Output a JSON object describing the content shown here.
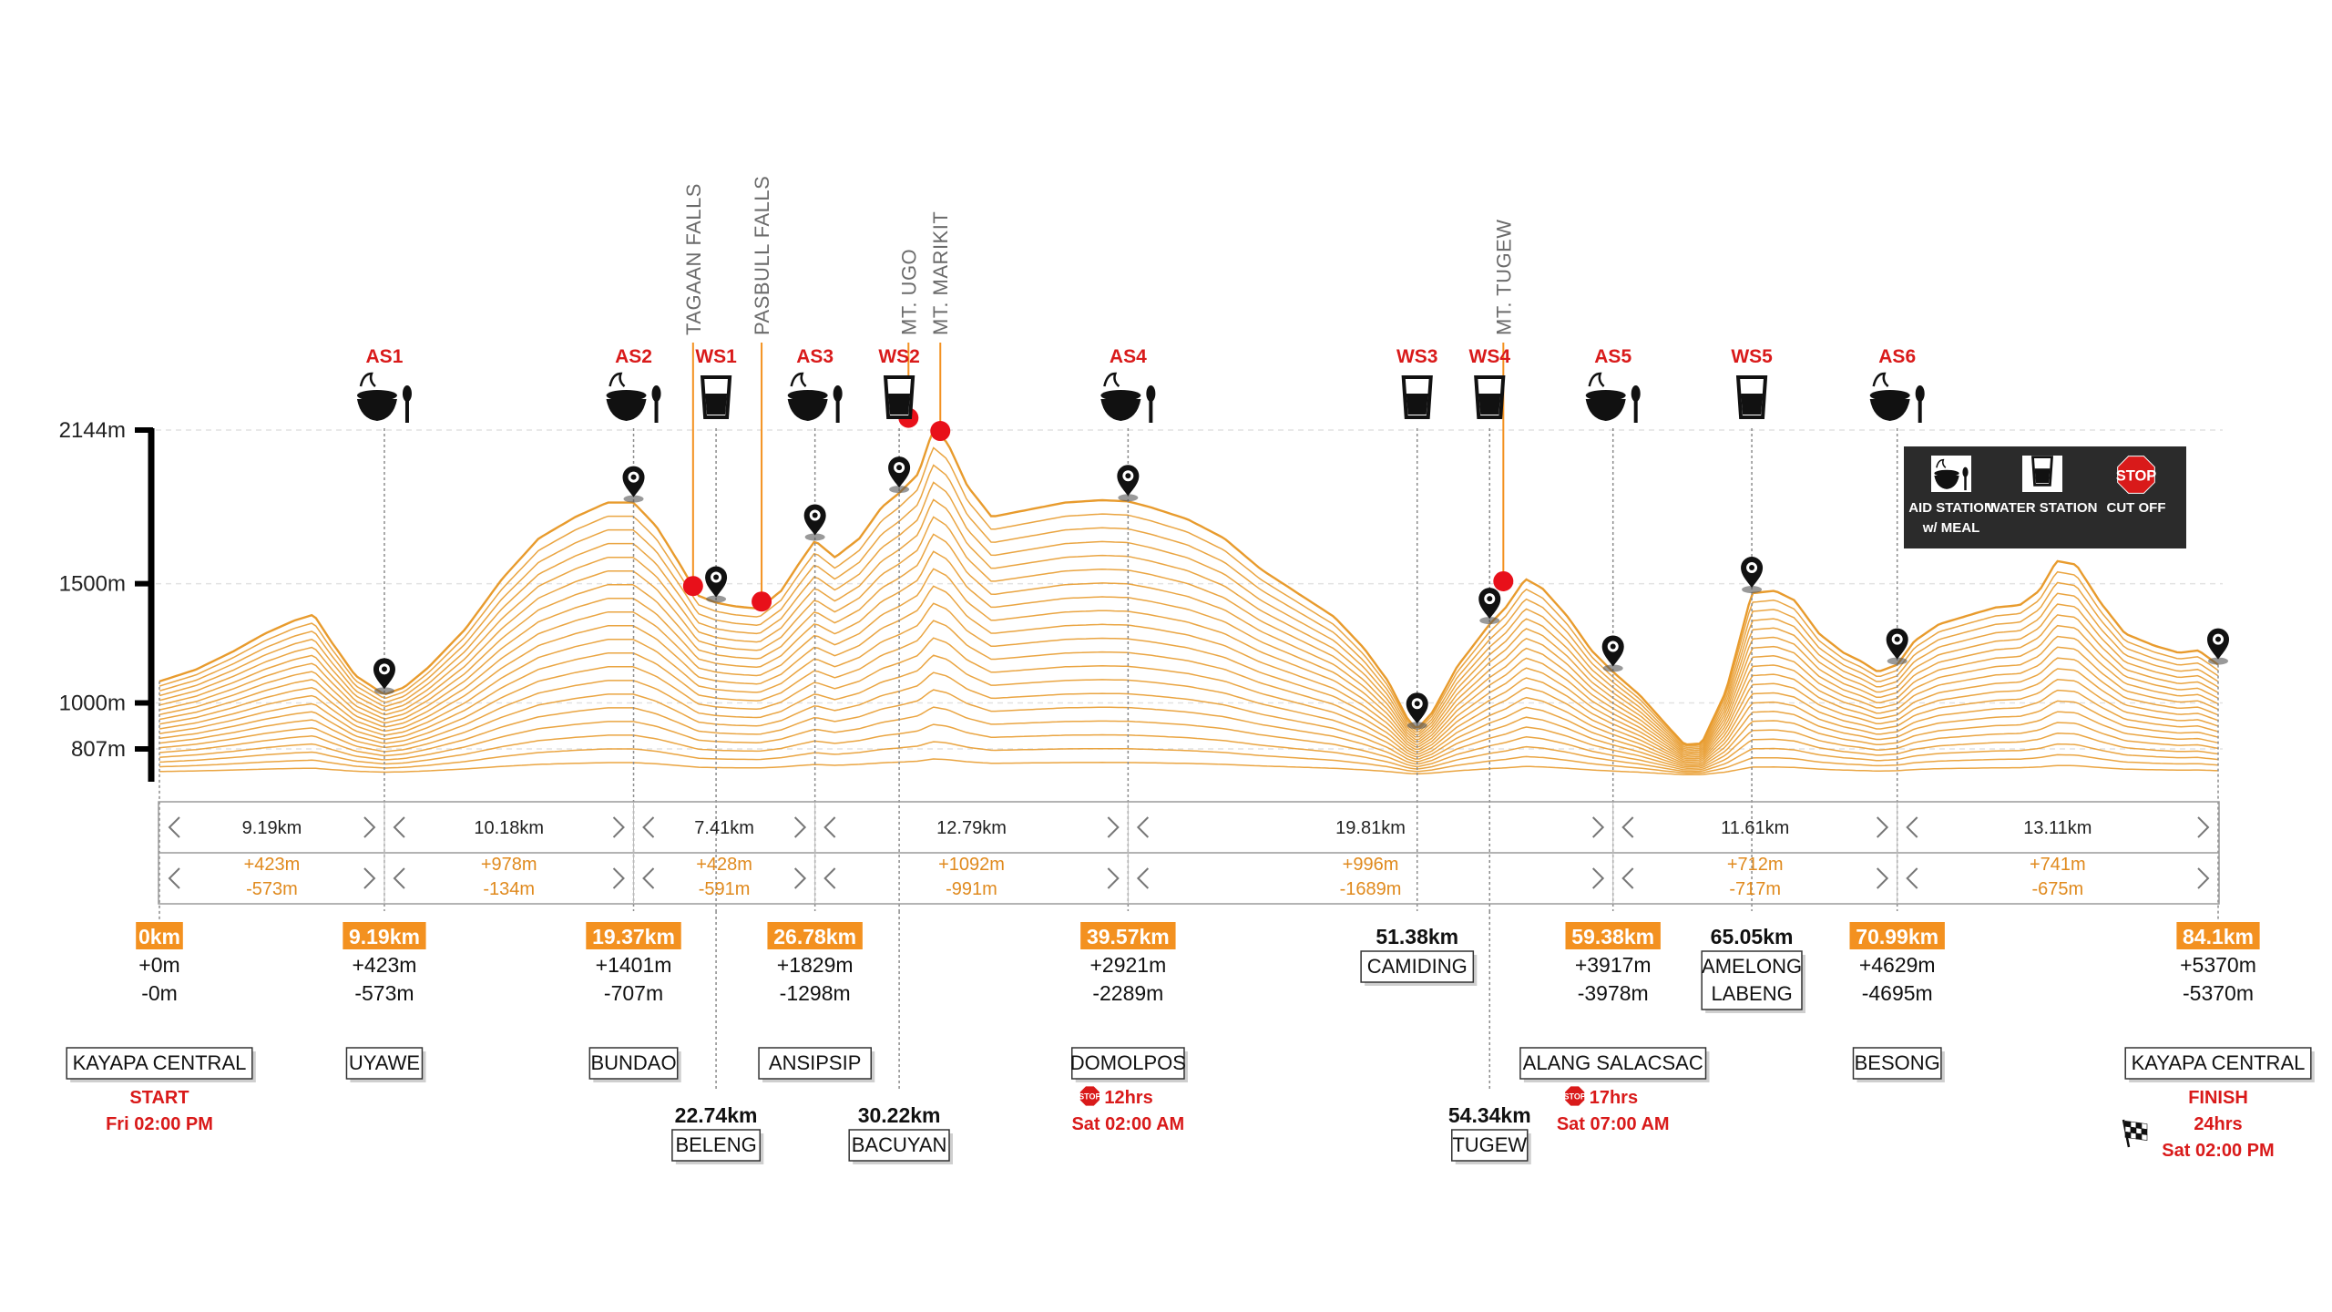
{
  "chart_data": {
    "type": "area",
    "title": "",
    "ylabel": "",
    "xlabel": "",
    "y_ticks": [
      {
        "label": "2144m",
        "value": 2144
      },
      {
        "label": "1500m",
        "value": 1500
      },
      {
        "label": "1000m",
        "value": 1000
      },
      {
        "label": "807m",
        "value": 807
      }
    ],
    "x_range_km": [
      0,
      84.1
    ],
    "profile": {
      "x": [
        0,
        1.5,
        3,
        4.3,
        5.5,
        6.3,
        7,
        8,
        9.19,
        10,
        11,
        12.5,
        14,
        15.5,
        17,
        18.3,
        19.37,
        20.3,
        21.3,
        22,
        22.74,
        23.5,
        24.5,
        25.4,
        26.1,
        26.78,
        27.6,
        28.6,
        29.5,
        30.22,
        31,
        31.6,
        32.2,
        33,
        34,
        35.5,
        37,
        38.5,
        39.57,
        40.5,
        42,
        43.5,
        45,
        46.5,
        48,
        49.2,
        50.2,
        51,
        51.38,
        52,
        53,
        54.34,
        55,
        55.8,
        56.5,
        57.5,
        58.5,
        59.38,
        60.5,
        61.5,
        62.3,
        63,
        64,
        65.05,
        66,
        66.8,
        67.8,
        68.8,
        69.5,
        70.2,
        70.99,
        71.7,
        72.7,
        74,
        75,
        76,
        76.8,
        77.5,
        78.3,
        79.3,
        80.3,
        81.5,
        82.5,
        83.3,
        84.1
      ],
      "y": [
        1090,
        1140,
        1215,
        1290,
        1345,
        1370,
        1260,
        1115,
        1035,
        1065,
        1150,
        1310,
        1520,
        1690,
        1780,
        1840,
        1840,
        1740,
        1575,
        1450,
        1420,
        1405,
        1395,
        1470,
        1580,
        1680,
        1610,
        1690,
        1820,
        1880,
        1960,
        2144,
        2090,
        1910,
        1780,
        1810,
        1840,
        1850,
        1845,
        1820,
        1770,
        1690,
        1560,
        1460,
        1360,
        1230,
        1090,
        930,
        890,
        960,
        1150,
        1330,
        1400,
        1520,
        1480,
        1365,
        1220,
        1130,
        1030,
        915,
        825,
        830,
        1050,
        1460,
        1470,
        1430,
        1290,
        1210,
        1175,
        1130,
        1160,
        1260,
        1330,
        1370,
        1400,
        1410,
        1470,
        1595,
        1580,
        1420,
        1290,
        1240,
        1210,
        1220,
        1160
      ]
    },
    "stations": [
      {
        "code": "AS1",
        "type": "aid",
        "km": 9.19
      },
      {
        "code": "AS2",
        "type": "aid",
        "km": 19.37
      },
      {
        "code": "WS1",
        "type": "water",
        "km": 22.74
      },
      {
        "code": "AS3",
        "type": "aid",
        "km": 26.78
      },
      {
        "code": "WS2",
        "type": "water",
        "km": 30.22
      },
      {
        "code": "AS4",
        "type": "aid",
        "km": 39.57
      },
      {
        "code": "WS3",
        "type": "water",
        "km": 51.38
      },
      {
        "code": "WS4",
        "type": "water",
        "km": 54.34
      },
      {
        "code": "AS5",
        "type": "aid",
        "km": 59.38
      },
      {
        "code": "WS5",
        "type": "water",
        "km": 65.05
      },
      {
        "code": "AS6",
        "type": "aid",
        "km": 70.99
      }
    ],
    "landmarks": [
      {
        "name": "TAGAAN FALLS",
        "km": 21.8,
        "elev": 1490
      },
      {
        "name": "PASBULL FALLS",
        "km": 24.6,
        "elev": 1425
      },
      {
        "name": "MT. UGO",
        "km": 30.6,
        "elev": 2195
      },
      {
        "name": "MT. MARIKIT",
        "km": 31.9,
        "elev": 2140
      },
      {
        "name": "MT. TUGEW",
        "km": 54.9,
        "elev": 1510
      }
    ],
    "segments": [
      {
        "dist": "9.19km",
        "gain": "+423m",
        "loss": "-573m",
        "start_km": 0,
        "end_km": 9.19
      },
      {
        "dist": "10.18km",
        "gain": "+978m",
        "loss": "-134m",
        "start_km": 9.19,
        "end_km": 19.37
      },
      {
        "dist": "7.41km",
        "gain": "+428m",
        "loss": "-591m",
        "start_km": 19.37,
        "end_km": 26.78
      },
      {
        "dist": "12.79km",
        "gain": "+1092m",
        "loss": "-991m",
        "start_km": 26.78,
        "end_km": 39.57
      },
      {
        "dist": "19.81km",
        "gain": "+996m",
        "loss": "-1689m",
        "start_km": 39.57,
        "end_km": 59.38
      },
      {
        "dist": "11.61km",
        "gain": "+712m",
        "loss": "-717m",
        "start_km": 59.38,
        "end_km": 70.99
      },
      {
        "dist": "13.11km",
        "gain": "+741m",
        "loss": "-675m",
        "start_km": 70.99,
        "end_km": 84.1
      }
    ],
    "checkpoints": [
      {
        "km": 0,
        "km_label": "0km",
        "highlight": true,
        "row": "top",
        "gain": "+0m",
        "loss": "-0m",
        "place": "KAYAPA CENTRAL",
        "notes": [
          "START",
          "Fri 02:00 PM"
        ]
      },
      {
        "km": 9.19,
        "km_label": "9.19km",
        "highlight": true,
        "row": "top",
        "gain": "+423m",
        "loss": "-573m",
        "place": "UYAWE"
      },
      {
        "km": 19.37,
        "km_label": "19.37km",
        "highlight": true,
        "row": "top",
        "gain": "+1401m",
        "loss": "-707m",
        "place": "BUNDAO"
      },
      {
        "km": 22.74,
        "km_label": "22.74km",
        "highlight": false,
        "row": "bottom",
        "place": "BELENG"
      },
      {
        "km": 26.78,
        "km_label": "26.78km",
        "highlight": true,
        "row": "top",
        "gain": "+1829m",
        "loss": "-1298m",
        "place": "ANSIPSIP"
      },
      {
        "km": 30.22,
        "km_label": "30.22km",
        "highlight": false,
        "row": "bottom",
        "place": "BACUYAN"
      },
      {
        "km": 39.57,
        "km_label": "39.57km",
        "highlight": true,
        "row": "top",
        "gain": "+2921m",
        "loss": "-2289m",
        "place": "DOMOLPOS",
        "cutoff": "12hrs",
        "cutoff_time": "Sat 02:00 AM"
      },
      {
        "km": 51.38,
        "km_label": "51.38km",
        "highlight": false,
        "row": "top",
        "place": "CAMIDING"
      },
      {
        "km": 54.34,
        "km_label": "54.34km",
        "highlight": false,
        "row": "bottom",
        "place": "TUGEW"
      },
      {
        "km": 59.38,
        "km_label": "59.38km",
        "highlight": true,
        "row": "top",
        "gain": "+3917m",
        "loss": "-3978m",
        "place": "ALANG SALACSAC",
        "cutoff": "17hrs",
        "cutoff_time": "Sat 07:00 AM"
      },
      {
        "km": 65.05,
        "km_label": "65.05km",
        "highlight": false,
        "row": "top",
        "place": "AMELONG LABENG"
      },
      {
        "km": 70.99,
        "km_label": "70.99km",
        "highlight": true,
        "row": "top",
        "gain": "+4629m",
        "loss": "-4695m",
        "place": "BESONG"
      },
      {
        "km": 84.1,
        "km_label": "84.1km",
        "highlight": true,
        "row": "top",
        "gain": "+5370m",
        "loss": "-5370m",
        "place": "KAYAPA CENTRAL",
        "notes": [
          "FINISH",
          "24hrs",
          "Sat 02:00 PM"
        ],
        "finish_flag": true
      }
    ],
    "legend": {
      "placement": "top-right",
      "items": [
        {
          "icon": "bowl-spoon-icon",
          "line1": "AID STATION",
          "line2": "w/ MEAL"
        },
        {
          "icon": "water-glass-icon",
          "line1": "WATER STATION",
          "line2": ""
        },
        {
          "icon": "stop-sign-icon",
          "line1": "CUT OFF",
          "line2": "",
          "sign": "STOP"
        }
      ]
    },
    "colors": {
      "line": "#e89b2d",
      "highlight": "#f39120",
      "station_code": "#d91a1a",
      "landmark_dot": "#e8101a",
      "legend_bg": "#2b2b2b",
      "axis": "#000000",
      "segment_gain": "#e08a1e"
    }
  }
}
